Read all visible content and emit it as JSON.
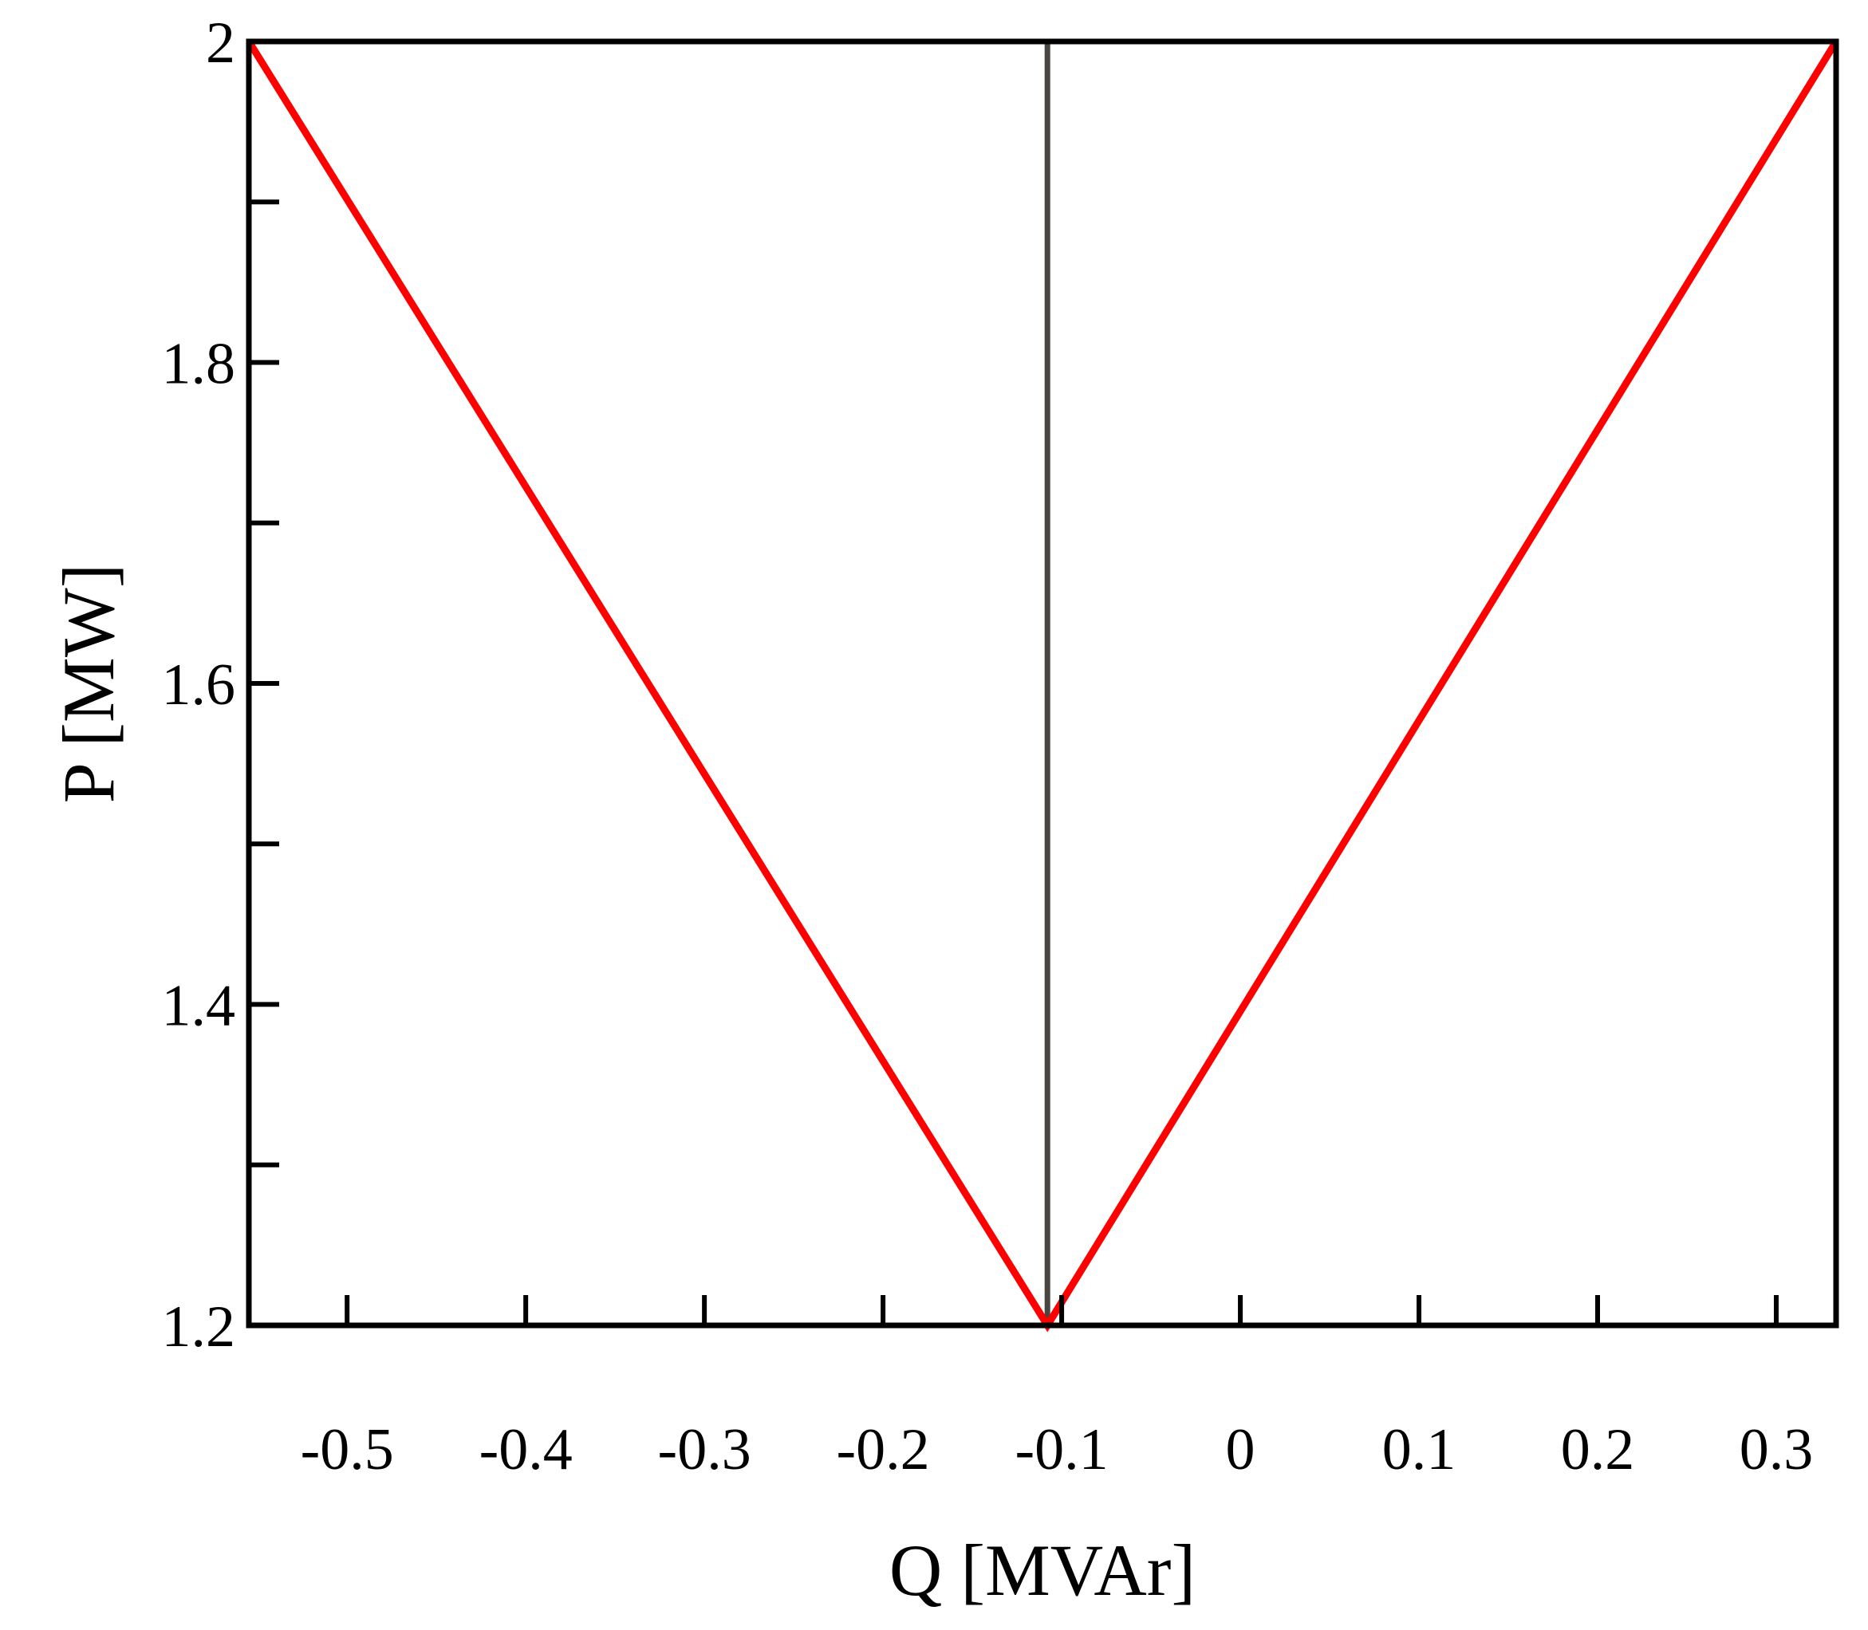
{
  "chart_data": {
    "type": "line",
    "title": "",
    "xlabel": "Q [MVAr]",
    "ylabel": "P [MW]",
    "xlim": [
      -0.555,
      0.3335
    ],
    "ylim": [
      1.2,
      2.0
    ],
    "xticks": [
      -0.5,
      -0.4,
      -0.3,
      -0.2,
      -0.1,
      0,
      0.1,
      0.2,
      0.3
    ],
    "xtick_labels": [
      "-0.5",
      "-0.4",
      "-0.3",
      "-0.2",
      "-0.1",
      "0",
      "0.1",
      "0.2",
      "0.3"
    ],
    "yticks_major": [
      1.2,
      1.4,
      1.6,
      1.8,
      2.0
    ],
    "ytick_labels": [
      "1.2",
      "1.4",
      "1.6",
      "1.8",
      "2"
    ],
    "yticks_minor": [
      1.3,
      1.5,
      1.7,
      1.9
    ],
    "grid": false,
    "series": [
      {
        "color": "#ff0000",
        "x": [
          -0.555,
          -0.108,
          0.3335
        ],
        "y": [
          2.0,
          1.2,
          2.0
        ]
      },
      {
        "color": "#4a4540",
        "x": [
          -0.108,
          -0.108
        ],
        "y": [
          1.2,
          2.0
        ]
      }
    ]
  }
}
